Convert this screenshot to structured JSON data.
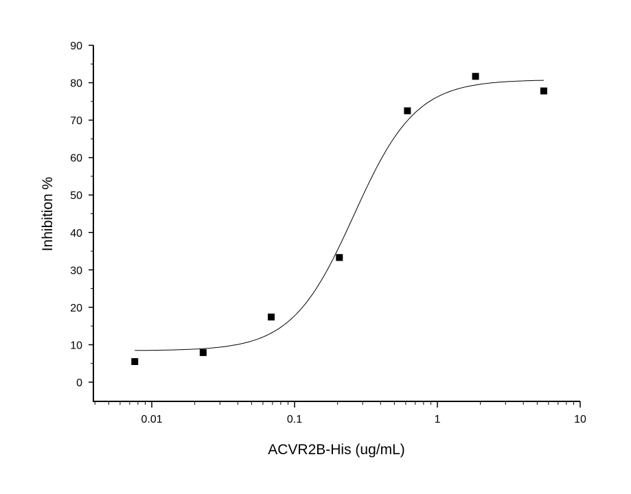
{
  "chart_data": {
    "type": "scatter",
    "xlabel": "ACVR2B-His (ug/mL)",
    "ylabel": "Inhibition %",
    "x_scale": "log",
    "xlim": [
      0.0039,
      10
    ],
    "ylim": [
      -5.1,
      90
    ],
    "x_ticks": [
      0.01,
      0.1,
      1,
      10
    ],
    "x_tick_labels": [
      "0.01",
      "0.1",
      "1",
      "10"
    ],
    "y_ticks": [
      0,
      10,
      20,
      30,
      40,
      50,
      60,
      70,
      80,
      90
    ],
    "y_tick_labels": [
      "0",
      "10",
      "20",
      "30",
      "40",
      "50",
      "60",
      "70",
      "80",
      "90"
    ],
    "grid": false,
    "marker_color": "#000000",
    "series": [
      {
        "x": [
          0.0076,
          0.0229,
          0.0686,
          0.206,
          0.617,
          1.85,
          5.56
        ],
        "y": [
          5.5,
          7.9,
          17.4,
          33.3,
          72.5,
          81.7,
          77.8
        ]
      }
    ],
    "fit_curve": {
      "model": "4PL",
      "bottom": 8.4,
      "top": 80.8,
      "ec50": 0.26,
      "hill": 2.0,
      "x_range": [
        0.0076,
        5.56
      ]
    }
  }
}
